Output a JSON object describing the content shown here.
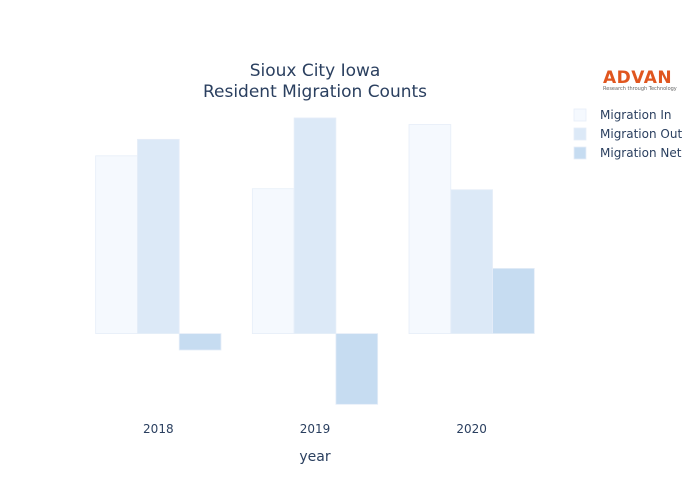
{
  "logo": {
    "name": "ADVAN",
    "tagline": "Research through Technology"
  },
  "chart_data": {
    "type": "bar",
    "title_lines": [
      "Sioux City Iowa",
      "Resident Migration Counts"
    ],
    "xlabel": "year",
    "ylabel": "",
    "categories": [
      "2018",
      "2019",
      "2020"
    ],
    "series": [
      {
        "name": "Migration In",
        "values": [
          5400,
          4400,
          6350
        ],
        "color": "#f5f9fe"
      },
      {
        "name": "Migration Out",
        "values": [
          5900,
          6550,
          4370
        ],
        "color": "#dce9f7"
      },
      {
        "name": "Migration Net",
        "values": [
          -500,
          -2150,
          1980
        ],
        "color": "#c6dcf1"
      }
    ],
    "ylim": [
      -2200,
      6700
    ],
    "grid": false,
    "legend_position": "top-right"
  }
}
